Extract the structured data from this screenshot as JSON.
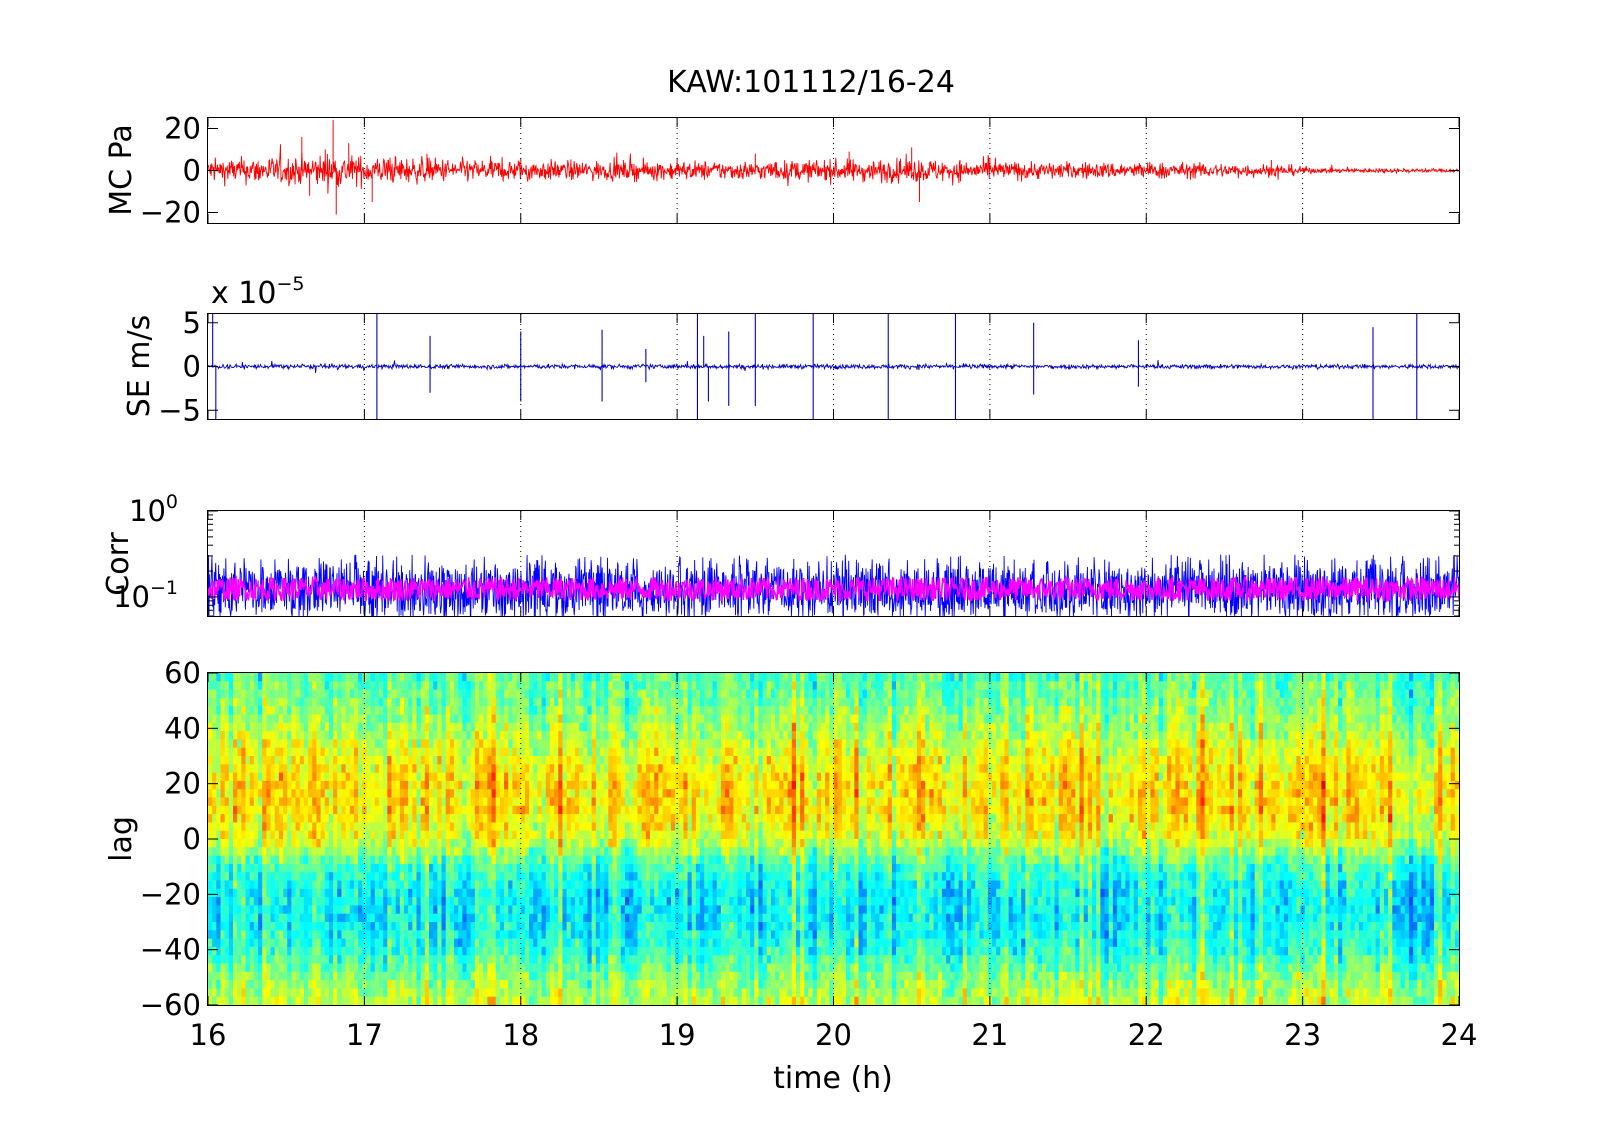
{
  "figure_title": "KAW:101112/16-24",
  "colors": {
    "mc_trace": "#ff0000",
    "se_trace": "#0000c8",
    "corr_trace": "#0000ff",
    "corr_smooth": "#ff00ff",
    "grid": "#000000",
    "colormap": "jet"
  },
  "chart_data": [
    {
      "type": "line",
      "id": "mc",
      "ylabel": "MC Pa",
      "xlim": [
        16,
        24
      ],
      "ylim": [
        -25,
        25
      ],
      "x_ticks": [
        16,
        17,
        18,
        19,
        20,
        21,
        22,
        23,
        24
      ],
      "y_ticks": [
        -20,
        0,
        20
      ],
      "y_tick_labels": [
        "−20",
        "0",
        "20"
      ],
      "grid": "x dotted",
      "series": [
        {
          "color": "#ff0000",
          "description_values": "noisy pressure record",
          "envelope": {
            "x": [
              16,
              16.5,
              16.8,
              17,
              17.5,
              18,
              18.5,
              19,
              19.5,
              20,
              20.5,
              21,
              21.5,
              22,
              22.5,
              22.9,
              23.1,
              24
            ],
            "y": [
              5,
              6,
              7,
              6,
              5,
              4.5,
              4,
              4,
              4,
              4.5,
              5,
              4,
              3.5,
              3.5,
              3,
              2.5,
              1,
              0.8
            ]
          },
          "spikes": [
            {
              "x": 16.6,
              "y": 16
            },
            {
              "x": 16.65,
              "y": -12
            },
            {
              "x": 16.75,
              "y": 10
            },
            {
              "x": 16.8,
              "y": 24
            },
            {
              "x": 16.82,
              "y": -21
            },
            {
              "x": 16.9,
              "y": 13
            },
            {
              "x": 17.05,
              "y": -15
            },
            {
              "x": 17.4,
              "y": 8
            },
            {
              "x": 18.0,
              "y": 6
            },
            {
              "x": 19.0,
              "y": 6
            },
            {
              "x": 19.5,
              "y": 8
            },
            {
              "x": 20.1,
              "y": 9
            },
            {
              "x": 20.5,
              "y": 11
            },
            {
              "x": 20.55,
              "y": -15
            },
            {
              "x": 21.0,
              "y": 6
            },
            {
              "x": 22.8,
              "y": 5
            }
          ]
        }
      ]
    },
    {
      "type": "line",
      "id": "se",
      "ylabel": "SE m/s",
      "y_multiplier": "x 10",
      "y_multiplier_exponent": "−5",
      "xlim": [
        16,
        24
      ],
      "ylim": [
        -6,
        6
      ],
      "x_ticks": [
        16,
        17,
        18,
        19,
        20,
        21,
        22,
        23,
        24
      ],
      "y_ticks": [
        -5,
        0,
        5
      ],
      "y_tick_labels": [
        "−5",
        "0",
        "5"
      ],
      "grid": "x dotted",
      "series": [
        {
          "color": "#0000c8",
          "baseline_amplitude": 0.25,
          "spikes": [
            {
              "x": 16.03,
              "y": 6
            },
            {
              "x": 16.05,
              "y": -6
            },
            {
              "x": 17.08,
              "y": 6
            },
            {
              "x": 17.08,
              "y": -6
            },
            {
              "x": 17.42,
              "y": 3.5
            },
            {
              "x": 17.42,
              "y": -3
            },
            {
              "x": 18.0,
              "y": 4
            },
            {
              "x": 18.0,
              "y": -4
            },
            {
              "x": 18.52,
              "y": 4.2
            },
            {
              "x": 18.52,
              "y": -4
            },
            {
              "x": 18.8,
              "y": 2
            },
            {
              "x": 18.8,
              "y": -1.8
            },
            {
              "x": 19.13,
              "y": 6
            },
            {
              "x": 19.13,
              "y": -6
            },
            {
              "x": 19.17,
              "y": 3.5
            },
            {
              "x": 19.2,
              "y": -4
            },
            {
              "x": 19.33,
              "y": 4
            },
            {
              "x": 19.33,
              "y": -4.5
            },
            {
              "x": 19.5,
              "y": 6
            },
            {
              "x": 19.5,
              "y": -4.5
            },
            {
              "x": 19.87,
              "y": 6
            },
            {
              "x": 19.87,
              "y": -6
            },
            {
              "x": 20.35,
              "y": 6
            },
            {
              "x": 20.35,
              "y": -6
            },
            {
              "x": 20.78,
              "y": 6
            },
            {
              "x": 20.78,
              "y": -6
            },
            {
              "x": 21.28,
              "y": 5
            },
            {
              "x": 21.28,
              "y": -3.2
            },
            {
              "x": 21.95,
              "y": 3
            },
            {
              "x": 21.95,
              "y": -2.3
            },
            {
              "x": 23.45,
              "y": 4.5
            },
            {
              "x": 23.45,
              "y": -6
            },
            {
              "x": 23.73,
              "y": 6
            },
            {
              "x": 23.73,
              "y": -6
            }
          ]
        }
      ]
    },
    {
      "type": "line",
      "id": "corr",
      "ylabel": "Corr",
      "yscale": "log",
      "xlim": [
        16,
        24
      ],
      "ylim": [
        0.06,
        1
      ],
      "x_ticks": [
        16,
        17,
        18,
        19,
        20,
        21,
        22,
        23,
        24
      ],
      "y_ticks": [
        0.1,
        1
      ],
      "y_tick_label_bases": [
        "10",
        "10"
      ],
      "y_tick_label_exponents": [
        "−1",
        "0"
      ],
      "grid": "x dotted",
      "series": [
        {
          "color": "#0000ff",
          "role": "raw",
          "typical_low": 0.07,
          "typical_high": 0.22
        },
        {
          "color": "#ff00ff",
          "role": "smoothed",
          "typical_low": 0.09,
          "typical_high": 0.17
        }
      ]
    },
    {
      "type": "heatmap",
      "id": "lag",
      "ylabel": "lag",
      "xlabel": "time (h)",
      "xlim": [
        16,
        24
      ],
      "ylim": [
        -60,
        60
      ],
      "x_ticks": [
        16,
        17,
        18,
        19,
        20,
        21,
        22,
        23,
        24
      ],
      "x_tick_labels": [
        "16",
        "17",
        "18",
        "19",
        "20",
        "21",
        "22",
        "23",
        "24"
      ],
      "y_ticks": [
        -60,
        -40,
        -20,
        0,
        20,
        40,
        60
      ],
      "y_tick_labels": [
        "−60",
        "−40",
        "−20",
        "0",
        "20",
        "40",
        "60"
      ],
      "colormap": "jet",
      "description_values": "correlation vs lag over time; warmer band near lag 0 to 30, cooler band near lag -10 to -40",
      "lag_profile": {
        "lag": [
          -60,
          -50,
          -40,
          -30,
          -20,
          -10,
          0,
          10,
          20,
          30,
          40,
          50,
          60
        ],
        "level": [
          0.58,
          0.52,
          0.42,
          0.38,
          0.38,
          0.44,
          0.6,
          0.66,
          0.66,
          0.62,
          0.55,
          0.5,
          0.46
        ]
      }
    }
  ]
}
